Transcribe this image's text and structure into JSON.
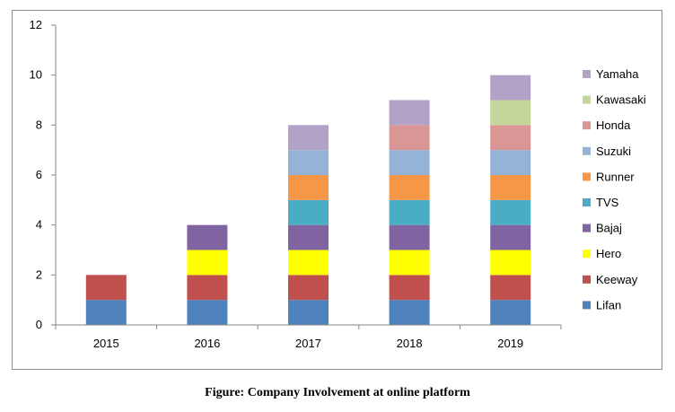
{
  "caption": "Figure: Company Involvement at online platform",
  "chart_data": {
    "type": "bar",
    "stacked": true,
    "categories": [
      "2015",
      "2016",
      "2017",
      "2018",
      "2019"
    ],
    "ylim": [
      0,
      12
    ],
    "yticks": [
      0,
      2,
      4,
      6,
      8,
      10,
      12
    ],
    "grid": false,
    "legend_position": "right",
    "series": [
      {
        "name": "Lifan",
        "color": "#4f81bd",
        "values": [
          1,
          1,
          1,
          1,
          1
        ]
      },
      {
        "name": "Keeway",
        "color": "#c0504d",
        "values": [
          1,
          1,
          1,
          1,
          1
        ]
      },
      {
        "name": "Hero",
        "color": "#ffff00",
        "values": [
          0,
          1,
          1,
          1,
          1
        ]
      },
      {
        "name": "Bajaj",
        "color": "#8064a2",
        "values": [
          0,
          1,
          1,
          1,
          1
        ]
      },
      {
        "name": "TVS",
        "color": "#4bacc6",
        "values": [
          0,
          0,
          1,
          1,
          1
        ]
      },
      {
        "name": "Runner",
        "color": "#f79646",
        "values": [
          0,
          0,
          1,
          1,
          1
        ]
      },
      {
        "name": "Suzuki",
        "color": "#95b3d7",
        "values": [
          0,
          0,
          1,
          1,
          1
        ]
      },
      {
        "name": "Honda",
        "color": "#d99694",
        "values": [
          0,
          0,
          0,
          1,
          1
        ]
      },
      {
        "name": "Kawasaki",
        "color": "#c3d69b",
        "values": [
          0,
          0,
          0,
          0,
          1
        ]
      },
      {
        "name": "Yamaha",
        "color": "#b2a2c7",
        "values": [
          0,
          0,
          1,
          1,
          1
        ]
      }
    ]
  }
}
